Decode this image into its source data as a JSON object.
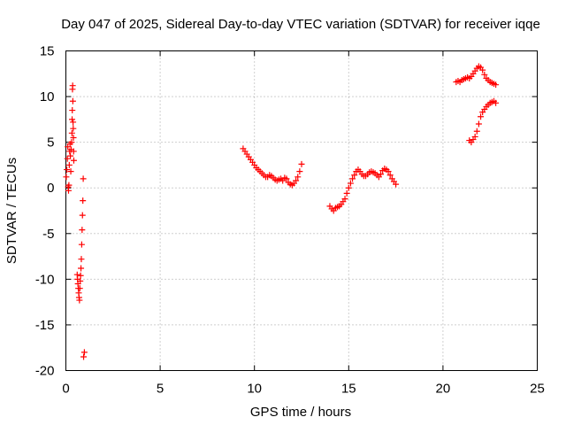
{
  "chart_data": {
    "type": "scatter",
    "title": "Day 047 of 2025, Sidereal Day-to-day VTEC variation (SDTVAR) for receiver iqqe",
    "xlabel": "GPS time / hours",
    "ylabel": "SDTVAR / TECUs",
    "xlim": [
      0,
      25
    ],
    "ylim": [
      -20,
      15
    ],
    "x_ticks": [
      0,
      5,
      10,
      15,
      20,
      25
    ],
    "x_tick_labels": [
      "0",
      "5",
      "10",
      "15",
      "20",
      "25"
    ],
    "y_ticks": [
      -20,
      -15,
      -10,
      -5,
      0,
      5,
      10,
      15
    ],
    "y_tick_labels": [
      "-20",
      "-15",
      "-10",
      "-5",
      "0",
      "5",
      "10",
      "15"
    ],
    "grid": true,
    "marker": "+",
    "marker_color": "#ff0000",
    "series": [
      {
        "name": "SDTVAR",
        "points": [
          [
            0.02,
            1.2
          ],
          [
            0.05,
            2.0
          ],
          [
            0.08,
            3.2
          ],
          [
            0.1,
            4.5
          ],
          [
            0.12,
            0.1
          ],
          [
            0.14,
            -0.3
          ],
          [
            0.16,
            0.3
          ],
          [
            0.18,
            2.5
          ],
          [
            0.2,
            4.0
          ],
          [
            0.22,
            4.8
          ],
          [
            0.24,
            3.5
          ],
          [
            0.26,
            1.8
          ],
          [
            0.28,
            4.2
          ],
          [
            0.3,
            5.0
          ],
          [
            0.32,
            6.0
          ],
          [
            0.33,
            7.5
          ],
          [
            0.34,
            8.5
          ],
          [
            0.35,
            10.8
          ],
          [
            0.36,
            11.2
          ],
          [
            0.37,
            9.5
          ],
          [
            0.38,
            7.2
          ],
          [
            0.39,
            6.5
          ],
          [
            0.4,
            5.5
          ],
          [
            0.41,
            4.0
          ],
          [
            0.42,
            3.0
          ],
          [
            0.6,
            -9.5
          ],
          [
            0.62,
            -10.0
          ],
          [
            0.64,
            -10.5
          ],
          [
            0.66,
            -11.0
          ],
          [
            0.68,
            -11.5
          ],
          [
            0.7,
            -12.0
          ],
          [
            0.72,
            -12.3
          ],
          [
            0.74,
            -11.0
          ],
          [
            0.76,
            -10.2
          ],
          [
            0.78,
            -9.6
          ],
          [
            0.8,
            -8.8
          ],
          [
            0.82,
            -7.8
          ],
          [
            0.84,
            -6.2
          ],
          [
            0.86,
            -4.6
          ],
          [
            0.88,
            -3.0
          ],
          [
            0.9,
            -1.4
          ],
          [
            0.92,
            1.0
          ],
          [
            0.94,
            -18.5
          ],
          [
            0.98,
            -18.0
          ],
          [
            9.4,
            4.3
          ],
          [
            9.5,
            4.0
          ],
          [
            9.6,
            3.7
          ],
          [
            9.7,
            3.4
          ],
          [
            9.8,
            3.1
          ],
          [
            9.9,
            2.8
          ],
          [
            10.0,
            2.5
          ],
          [
            10.1,
            2.2
          ],
          [
            10.2,
            2.0
          ],
          [
            10.3,
            1.8
          ],
          [
            10.4,
            1.6
          ],
          [
            10.5,
            1.4
          ],
          [
            10.6,
            1.2
          ],
          [
            10.7,
            1.2
          ],
          [
            10.8,
            1.4
          ],
          [
            10.9,
            1.3
          ],
          [
            11.0,
            1.1
          ],
          [
            11.1,
            0.9
          ],
          [
            11.2,
            0.8
          ],
          [
            11.3,
            0.9
          ],
          [
            11.4,
            1.0
          ],
          [
            11.5,
            0.8
          ],
          [
            11.6,
            1.1
          ],
          [
            11.7,
            1.0
          ],
          [
            11.8,
            0.6
          ],
          [
            11.9,
            0.4
          ],
          [
            12.0,
            0.3
          ],
          [
            12.1,
            0.5
          ],
          [
            12.2,
            0.8
          ],
          [
            12.3,
            1.2
          ],
          [
            12.4,
            1.8
          ],
          [
            12.5,
            2.6
          ],
          [
            14.0,
            -2.0
          ],
          [
            14.1,
            -2.3
          ],
          [
            14.2,
            -2.5
          ],
          [
            14.3,
            -2.2
          ],
          [
            14.4,
            -2.1
          ],
          [
            14.5,
            -2.0
          ],
          [
            14.6,
            -1.8
          ],
          [
            14.7,
            -1.5
          ],
          [
            14.8,
            -1.2
          ],
          [
            14.9,
            -0.6
          ],
          [
            15.0,
            0.0
          ],
          [
            15.1,
            0.5
          ],
          [
            15.2,
            1.0
          ],
          [
            15.3,
            1.4
          ],
          [
            15.4,
            1.8
          ],
          [
            15.5,
            2.0
          ],
          [
            15.6,
            1.8
          ],
          [
            15.7,
            1.5
          ],
          [
            15.8,
            1.3
          ],
          [
            15.9,
            1.3
          ],
          [
            16.0,
            1.5
          ],
          [
            16.1,
            1.7
          ],
          [
            16.2,
            1.8
          ],
          [
            16.3,
            1.7
          ],
          [
            16.4,
            1.6
          ],
          [
            16.5,
            1.4
          ],
          [
            16.6,
            1.2
          ],
          [
            16.7,
            1.5
          ],
          [
            16.8,
            1.9
          ],
          [
            16.9,
            2.1
          ],
          [
            17.0,
            2.0
          ],
          [
            17.1,
            1.8
          ],
          [
            17.2,
            1.4
          ],
          [
            17.3,
            1.0
          ],
          [
            17.4,
            0.7
          ],
          [
            17.5,
            0.4
          ],
          [
            20.7,
            11.6
          ],
          [
            20.8,
            11.7
          ],
          [
            20.9,
            11.6
          ],
          [
            21.0,
            11.8
          ],
          [
            21.1,
            11.9
          ],
          [
            21.2,
            12.0
          ],
          [
            21.3,
            12.1
          ],
          [
            21.4,
            12.0
          ],
          [
            21.5,
            12.2
          ],
          [
            21.6,
            12.5
          ],
          [
            21.7,
            12.8
          ],
          [
            21.8,
            13.1
          ],
          [
            21.9,
            13.3
          ],
          [
            22.0,
            13.2
          ],
          [
            22.1,
            12.9
          ],
          [
            22.2,
            12.4
          ],
          [
            22.3,
            12.0
          ],
          [
            22.4,
            11.8
          ],
          [
            22.5,
            11.6
          ],
          [
            22.6,
            11.5
          ],
          [
            22.7,
            11.4
          ],
          [
            22.8,
            11.3
          ],
          [
            21.4,
            5.2
          ],
          [
            21.5,
            5.0
          ],
          [
            21.6,
            5.3
          ],
          [
            21.7,
            5.6
          ],
          [
            21.8,
            6.2
          ],
          [
            21.9,
            7.0
          ],
          [
            22.0,
            7.8
          ],
          [
            22.1,
            8.3
          ],
          [
            22.2,
            8.6
          ],
          [
            22.3,
            8.9
          ],
          [
            22.4,
            9.1
          ],
          [
            22.5,
            9.3
          ],
          [
            22.6,
            9.4
          ],
          [
            22.7,
            9.5
          ],
          [
            22.8,
            9.3
          ]
        ]
      }
    ]
  }
}
